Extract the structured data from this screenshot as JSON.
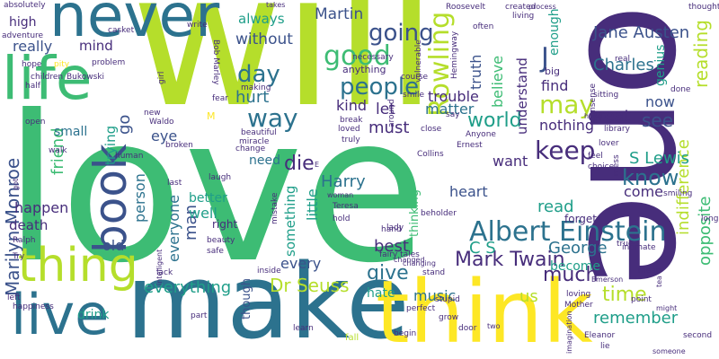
{
  "palette": {
    "lime": "#b5de2b",
    "green": "#3dbc74",
    "teal": "#1f9e89",
    "blue": "#2c728e",
    "indigo": "#3b528b",
    "purple": "#472d7b",
    "yellow": "#fde725",
    "light": "#d2e21b"
  },
  "words": {
    "will": "will",
    "love": "love",
    "one": "one",
    "make": "make",
    "think": "think",
    "never": "never",
    "life": "life",
    "live": "live",
    "thing": "thing",
    "book": "book",
    "albert_einstein": "Albert Einstein",
    "marilyn_monroe": "Marilyn Monroe",
    "rowling": "Rowling",
    "good": "good",
    "going": "going",
    "people": "people",
    "way": "way",
    "day": "day",
    "world": "world",
    "know": "know",
    "may": "may",
    "die": "die",
    "keep": "keep",
    "give": "give",
    "mark_twain": "Mark Twain",
    "dr_seuss": "Dr Seuss",
    "everything": "everything",
    "jane_austen": "Jane Austen",
    "martin": "Martin",
    "j": "J",
    "charles": "Charles",
    "reading": "reading",
    "opposite": "opposite",
    "indifference": "indifference",
    "s_lewis": "S Lewis",
    "c_s": "C S",
    "george": "George",
    "much": "much",
    "time": "time",
    "remember": "remember",
    "harry": "Harry",
    "read": "read",
    "music": "music",
    "us": "us",
    "without": "without",
    "always": "always",
    "really": "really",
    "mind": "mind",
    "high": "high",
    "happen": "happen",
    "friend": "friend",
    "death": "death",
    "must": "must",
    "let": "let",
    "kind": "kind",
    "trouble": "trouble",
    "understand": "understand",
    "believe": "believe",
    "truth": "truth",
    "matter": "matter",
    "nothing": "nothing",
    "great": "great",
    "see": "see",
    "now": "now",
    "find": "find",
    "enough": "enough",
    "genius": "genius",
    "want": "want",
    "heart": "heart",
    "come": "come",
    "best": "best",
    "become": "become",
    "hate": "hate",
    "thinking": "thinking",
    "little": "little",
    "something": "something",
    "every": "every",
    "man": "man",
    "well": "well",
    "better": "better",
    "old": "old",
    "everyone": "everyone",
    "person": "person",
    "trying": "trying",
    "go": "go",
    "hurt": "hurt",
    "need": "need",
    "eye": "eye",
    "small": "small",
    "drink": "drink",
    "though": "though",
    "forget": "forget",
    "right": "right",
    "beauty": "beauty",
    "safe": "safe",
    "children": "children",
    "bukowski": "Bukowski",
    "hope": "hope",
    "half": "half",
    "open": "open",
    "walk": "walk",
    "absolutely": "absolutely",
    "adventure": "adventure",
    "problem": "problem",
    "casket": "casket",
    "write": "write",
    "bob_marley": "Bob Marley",
    "takes": "takes",
    "roosevelt": "Roosevelt",
    "created": "created",
    "living": "living",
    "thought": "thought",
    "process": "process",
    "often": "often",
    "hemingway": "Hemingway",
    "necessary": "necessary",
    "anything": "anything",
    "vulnerable": "vulnerable",
    "course": "course",
    "smile": "smile",
    "pity": "pity",
    "girl": "girl",
    "fear": "fear",
    "making": "making",
    "waldo": "Waldo",
    "new": "new",
    "beautiful": "beautiful",
    "miracle": "miracle",
    "change": "change",
    "broken": "broken",
    "human": "human",
    "break": "break",
    "loved": "loved",
    "truly": "truly",
    "close": "close",
    "around": "around",
    "say": "say",
    "anyone": "Anyone",
    "ernest": "Ernest",
    "collins": "Collins",
    "head": "head",
    "sitting": "sitting",
    "library": "library",
    "feel": "feel",
    "choice": "choice",
    "nonsense": "nonsense",
    "lover": "lover",
    "real": "real",
    "big": "big",
    "done": "done",
    "mess": "mess",
    "smiling": "smiling",
    "long": "long",
    "intimate": "intimate",
    "true": "true",
    "mean": "mean",
    "tea": "tea",
    "emerson": "Emerson",
    "point": "point",
    "loving": "loving",
    "mother": "Mother",
    "might": "might",
    "second": "second",
    "someone": "someone",
    "eleanor": "Eleanor",
    "lie": "lie",
    "imagination": "imagination",
    "two": "two",
    "door": "door",
    "grow": "grow",
    "begin": "begin",
    "perfect": "perfect",
    "stupid": "stupid",
    "changed": "changed",
    "stand": "stand",
    "changing": "changing",
    "fairy_tales": "fairy tales",
    "lady": "lady",
    "beholder": "beholder",
    "teresa": "Teresa",
    "woman": "woman",
    "hold": "hold",
    "hand": "hand",
    "mistake": "mistake",
    "laugh": "laugh",
    "last": "last",
    "lack": "lack",
    "inside": "inside",
    "part": "part",
    "learn": "learn",
    "fall": "fall",
    "left": "left",
    "happiness": "happiness",
    "ralph": "Ralph",
    "try": "Try",
    "got": "got",
    "intelligent": "intelligent",
    "m": "M",
    "e": "E"
  }
}
